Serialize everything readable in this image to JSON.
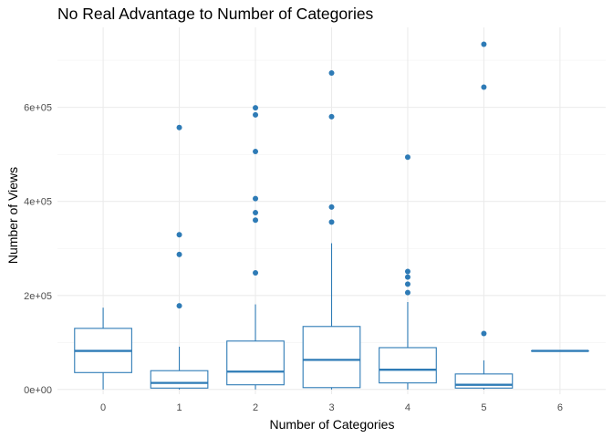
{
  "chart_data": {
    "type": "boxplot",
    "title": "No Real Advantage to Number of Categories",
    "xlabel": "Number of Categories",
    "ylabel": "Number of Views",
    "categories": [
      "0",
      "1",
      "2",
      "3",
      "4",
      "5",
      "6"
    ],
    "y_ticks": [
      {
        "value": 0,
        "label": "0e+00"
      },
      {
        "value": 200000,
        "label": "2e+05"
      },
      {
        "value": 400000,
        "label": "4e+05"
      },
      {
        "value": 600000,
        "label": "6e+05"
      }
    ],
    "ylim": [
      -10000,
      770000
    ],
    "grid": true,
    "color": "#2e7bb6",
    "boxes": [
      {
        "category": "0",
        "whisker_low": 0,
        "q1": 36000,
        "median": 82000,
        "q3": 130000,
        "whisker_high": 174000,
        "outliers": []
      },
      {
        "category": "1",
        "whisker_low": 0,
        "q1": 3000,
        "median": 14000,
        "q3": 40000,
        "whisker_high": 91000,
        "outliers": [
          178000,
          287000,
          329000,
          557000
        ]
      },
      {
        "category": "2",
        "whisker_low": 0,
        "q1": 10000,
        "median": 38000,
        "q3": 103000,
        "whisker_high": 181000,
        "outliers": [
          248000,
          360000,
          376000,
          406000,
          506000,
          584000,
          599000
        ]
      },
      {
        "category": "3",
        "whisker_low": 0,
        "q1": 4000,
        "median": 63000,
        "q3": 134000,
        "whisker_high": 311000,
        "outliers": [
          356000,
          388000,
          580000,
          673000
        ]
      },
      {
        "category": "4",
        "whisker_low": 0,
        "q1": 14000,
        "median": 42000,
        "q3": 89000,
        "whisker_high": 186000,
        "outliers": [
          206000,
          224000,
          239000,
          251000,
          494000
        ]
      },
      {
        "category": "5",
        "whisker_low": 0,
        "q1": 3000,
        "median": 10000,
        "q3": 33000,
        "whisker_high": 62000,
        "outliers": [
          119000,
          643000,
          734000
        ]
      },
      {
        "category": "6",
        "whisker_low": 82000,
        "q1": 82000,
        "median": 82000,
        "q3": 82000,
        "whisker_high": 82000,
        "outliers": []
      }
    ]
  }
}
